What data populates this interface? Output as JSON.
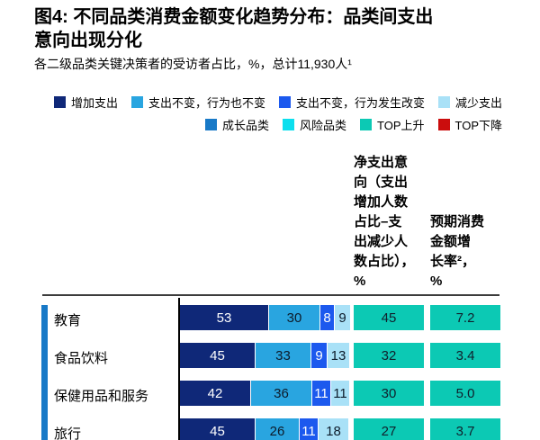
{
  "title": "图4: 不同品类消费金额变化趋势分布：品类间支出\n意向出现分化",
  "subtitle": "各二级品类关键决策者的受访者占比，%，总计11,930人¹",
  "legend": {
    "row1": [
      {
        "label": "增加支出",
        "color": "#0f2878"
      },
      {
        "label": "支出不变，行为也不变",
        "color": "#29a5e0"
      },
      {
        "label": "支出不变，行为发生改变",
        "color": "#1c59ee"
      },
      {
        "label": "减少支出",
        "color": "#a9e1f7"
      }
    ],
    "row2": [
      {
        "label": "成长品类",
        "color": "#1879c7"
      },
      {
        "label": "风险品类",
        "color": "#0bdfee"
      },
      {
        "label": "TOP上升",
        "color": "#0cc9b4"
      },
      {
        "label": "TOP下降",
        "color": "#cb0d0d"
      }
    ]
  },
  "columns": {
    "net_header": "净支出意\n向（支出\n增加人数\n占比–支\n出减少人\n数占比），\n%",
    "growth_header": "预期消费\n金额增\n长率²，\n%"
  },
  "chart_data": {
    "type": "bar",
    "orientation": "horizontal",
    "stacked": true,
    "title": "图4: 不同品类消费金额变化趋势分布：品类间支出意向出现分化",
    "subtitle": "各二级品类关键决策者的受访者占比，%，总计11,930人¹",
    "xlim": [
      0,
      100
    ],
    "categories": [
      "教育",
      "食品饮料",
      "保健用品和服务",
      "旅行"
    ],
    "series": [
      {
        "name": "增加支出",
        "color": "#0f2878",
        "text_color": "#ffffff",
        "values": [
          53,
          45,
          42,
          45
        ]
      },
      {
        "name": "支出不变，行为也不变",
        "color": "#29a5e0",
        "text_color": "#0d1b2a",
        "values": [
          30,
          33,
          36,
          26
        ]
      },
      {
        "name": "支出不变，行为发生改变",
        "color": "#1c59ee",
        "text_color": "#ffffff",
        "values": [
          8,
          9,
          11,
          11
        ]
      },
      {
        "name": "减少支出",
        "color": "#a9e1f7",
        "text_color": "#0d1b2a",
        "values": [
          9,
          13,
          11,
          18
        ]
      }
    ],
    "net_intent": {
      "label": "净支出意向（支出增加人数占比–支出减少人数占比），%",
      "values": [
        45,
        32,
        30,
        27
      ]
    },
    "expected_growth": {
      "label": "预期消费金额增长率²，%",
      "values": [
        "7.2",
        "3.4",
        "5.0",
        "3.7"
      ]
    },
    "value_box_color": "#0cc9b4"
  },
  "colors": {
    "accent_stripe": "#1879c7",
    "value_box": "#0cc9b4",
    "axis": "#000000",
    "divider": "#3c3c3c"
  }
}
